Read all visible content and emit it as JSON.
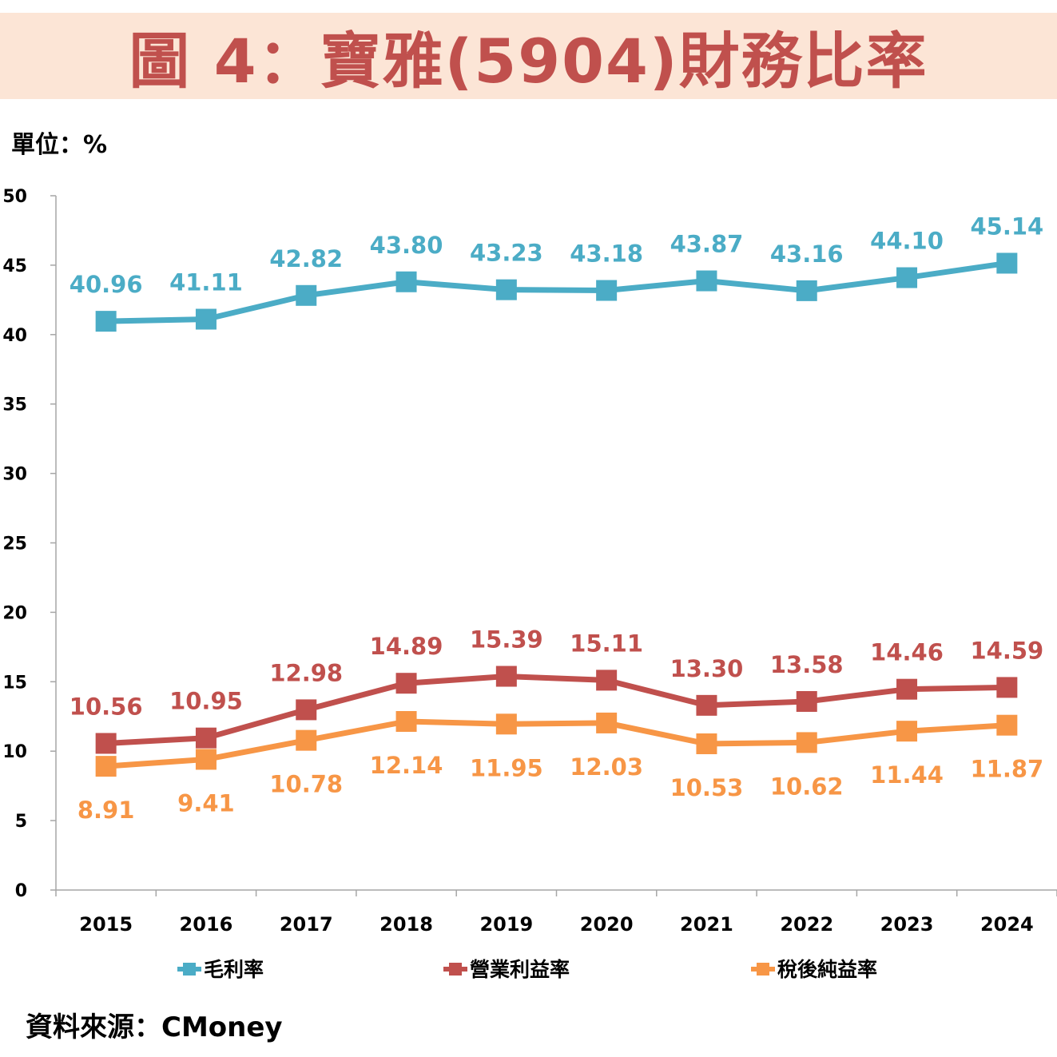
{
  "title": "圖 4：寶雅(5904)財務比率",
  "unit_label": "單位：%",
  "source": "資料來源：CMoney",
  "chart_data": {
    "type": "line",
    "categories": [
      "2015",
      "2016",
      "2017",
      "2018",
      "2019",
      "2020",
      "2021",
      "2022",
      "2023",
      "2024"
    ],
    "ylim": [
      0,
      50
    ],
    "yticks": [
      0,
      5,
      10,
      15,
      20,
      25,
      30,
      35,
      40,
      45,
      50
    ],
    "grid": false,
    "legend_position": "bottom",
    "series": [
      {
        "name": "毛利率",
        "color": "#4bacc6",
        "label_position": "above",
        "values": [
          40.96,
          41.11,
          42.82,
          43.8,
          43.23,
          43.18,
          43.87,
          43.16,
          44.1,
          45.14
        ],
        "labels": [
          "40.96",
          "41.11",
          "42.82",
          "43.80",
          "43.23",
          "43.18",
          "43.87",
          "43.16",
          "44.10",
          "45.14"
        ]
      },
      {
        "name": "營業利益率",
        "color": "#c0504d",
        "label_position": "above",
        "values": [
          10.56,
          10.95,
          12.98,
          14.89,
          15.39,
          15.11,
          13.3,
          13.58,
          14.46,
          14.59
        ],
        "labels": [
          "10.56",
          "10.95",
          "12.98",
          "14.89",
          "15.39",
          "15.11",
          "13.30",
          "13.58",
          "14.46",
          "14.59"
        ]
      },
      {
        "name": "稅後純益率",
        "color": "#f79646",
        "label_position": "below",
        "values": [
          8.91,
          9.41,
          10.78,
          12.14,
          11.95,
          12.03,
          10.53,
          10.62,
          11.44,
          11.87
        ],
        "labels": [
          "8.91",
          "9.41",
          "10.78",
          "12.14",
          "11.95",
          "12.03",
          "10.53",
          "10.62",
          "11.44",
          "11.87"
        ]
      }
    ]
  }
}
